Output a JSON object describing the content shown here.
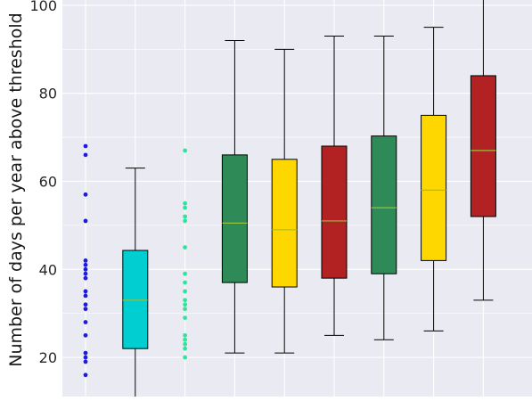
{
  "chart_data": {
    "type": "box",
    "title": "",
    "xlabel": "",
    "ylabel": "Number of days per year above threshold",
    "ylim": [
      11.1,
      101.2
    ],
    "yticks": [
      20,
      40,
      60,
      80,
      100
    ],
    "grid": true,
    "legend": "none",
    "colors": {
      "background": "#eaeaf2",
      "grid": "#ffffff",
      "median": "#95c13d",
      "whisker": "#000000",
      "dot_blue": "#1c1cde",
      "dot_green": "#2ee59a"
    },
    "groups": [
      {
        "kind": "points",
        "color": "#1c1cde",
        "values": [
          68,
          66,
          57,
          51,
          42,
          41,
          40,
          39,
          38,
          35,
          34,
          32,
          31,
          28,
          25,
          21,
          20,
          19,
          16
        ]
      },
      {
        "kind": "box",
        "color": "#00ced1",
        "min": 11,
        "q1": 22,
        "median": 33,
        "q3": 44.3,
        "max": 63
      },
      {
        "kind": "points",
        "color": "#2ee59a",
        "values": [
          67,
          55,
          54,
          52,
          51,
          45,
          39,
          37,
          35,
          33,
          32,
          31,
          29,
          25,
          24,
          23,
          22,
          20
        ]
      },
      {
        "kind": "box",
        "color": "#2e8b57",
        "min": 21,
        "q1": 37,
        "median": 50.5,
        "q3": 66,
        "max": 92
      },
      {
        "kind": "box",
        "color": "#ffd700",
        "min": 21,
        "q1": 36,
        "median": 49,
        "q3": 65,
        "max": 90
      },
      {
        "kind": "box",
        "color": "#b22222",
        "min": 25,
        "q1": 38,
        "median": 51,
        "q3": 68,
        "max": 93
      },
      {
        "kind": "box",
        "color": "#2e8b57",
        "min": 24,
        "q1": 39,
        "median": 54,
        "q3": 70.3,
        "max": 93
      },
      {
        "kind": "box",
        "color": "#ffd700",
        "min": 26,
        "q1": 42,
        "median": 58,
        "q3": 75,
        "max": 95
      },
      {
        "kind": "box",
        "color": "#b22222",
        "min": 33,
        "q1": 52,
        "median": 67,
        "q3": 84,
        "max": 103
      }
    ]
  }
}
